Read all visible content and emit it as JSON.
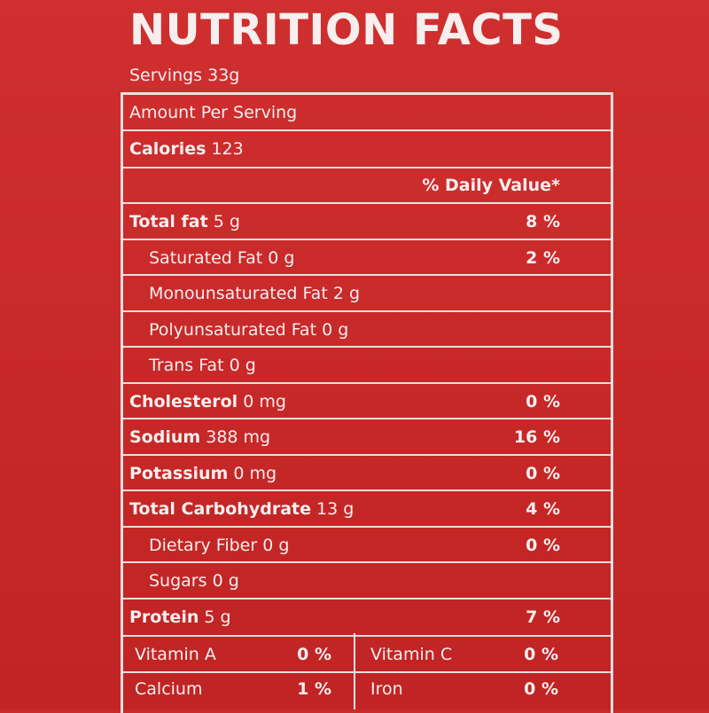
{
  "header": {
    "title": "NUTRITION FACTS",
    "servings": "Servings 33g"
  },
  "amount_per_serving": "Amount Per Serving",
  "calories": {
    "label": "Calories",
    "value": "123"
  },
  "daily_value_header": "% Daily Value*",
  "nutrients": [
    {
      "name": "Total fat",
      "amount": "5 g",
      "pct": "8 %",
      "bold": true,
      "indent": false
    },
    {
      "name": "Saturated Fat",
      "amount": "0 g",
      "pct": "2 %",
      "bold": false,
      "indent": true
    },
    {
      "name": "Monounsaturated Fat",
      "amount": "2 g",
      "pct": "",
      "bold": false,
      "indent": true
    },
    {
      "name": "Polyunsaturated Fat",
      "amount": "0 g",
      "pct": "",
      "bold": false,
      "indent": true
    },
    {
      "name": "Trans Fat",
      "amount": "0 g",
      "pct": "",
      "bold": false,
      "indent": true
    },
    {
      "name": "Cholesterol",
      "amount": "0 mg",
      "pct": "0 %",
      "bold": true,
      "indent": false
    },
    {
      "name": "Sodium",
      "amount": "388 mg",
      "pct": "16 %",
      "bold": true,
      "indent": false
    },
    {
      "name": "Potassium",
      "amount": "0 mg",
      "pct": "0 %",
      "bold": true,
      "indent": false
    },
    {
      "name": "Total Carbohydrate",
      "amount": "13 g",
      "pct": "4 %",
      "bold": true,
      "indent": false
    },
    {
      "name": "Dietary Fiber",
      "amount": "0 g",
      "pct": "0 %",
      "bold": false,
      "indent": true
    },
    {
      "name": "Sugars",
      "amount": "0 g",
      "pct": "",
      "bold": false,
      "indent": true
    },
    {
      "name": "Protein",
      "amount": "5 g",
      "pct": "7 %",
      "bold": true,
      "indent": false
    }
  ],
  "vitamins": [
    {
      "name": "Vitamin A",
      "pct": "0 %"
    },
    {
      "name": "Vitamin C",
      "pct": "0 %"
    },
    {
      "name": "Calcium",
      "pct": "1 %"
    },
    {
      "name": "Iron",
      "pct": "0 %"
    }
  ],
  "colors": {
    "background": "#c92a2a",
    "text": "#f7eeee",
    "rule": "#eddede"
  }
}
